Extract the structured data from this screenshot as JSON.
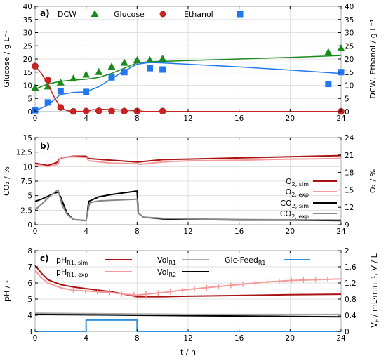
{
  "chart_data": [
    {
      "type": "line",
      "panel": "a)",
      "xlim": [
        0,
        24
      ],
      "x_ticks": [
        0,
        4,
        8,
        12,
        16,
        20,
        24
      ],
      "y_left": {
        "label": "Glucose / g L⁻¹",
        "lim": [
          0,
          40
        ],
        "ticks": [
          0,
          5,
          10,
          15,
          20,
          25,
          30,
          35,
          40
        ]
      },
      "y_right": {
        "label": "DCW,  Ethanol / g L⁻¹",
        "lim": [
          0,
          40
        ],
        "ticks": [
          0,
          5,
          10,
          15,
          20,
          25,
          30,
          35,
          40
        ]
      },
      "legend": [
        {
          "name": "DCW",
          "marker": "triangle",
          "color": "#1a8a1a"
        },
        {
          "name": "Glucose",
          "marker": "circle",
          "color": "#cc2222"
        },
        {
          "name": "Ethanol",
          "marker": "square",
          "color": "#2277ee"
        }
      ],
      "series": [
        {
          "name": "DCW",
          "kind": "points",
          "axis": "right",
          "marker": "triangle",
          "color": "#1a8a1a",
          "x": [
            0,
            1,
            2,
            3,
            4,
            5,
            6,
            7,
            8,
            9,
            10,
            23,
            24
          ],
          "y": [
            9,
            9.5,
            11,
            12.5,
            14,
            15,
            17,
            18.5,
            19.5,
            19.5,
            20,
            22.5,
            24
          ]
        },
        {
          "name": "DCW sim",
          "kind": "line",
          "axis": "right",
          "color": "#1a8a1a",
          "x": [
            0,
            1,
            2,
            3,
            4,
            5,
            6,
            7,
            8,
            9,
            10,
            12,
            16,
            20,
            24
          ],
          "y": [
            8.5,
            10.5,
            11.5,
            12,
            12.3,
            13,
            14.5,
            16.5,
            18.5,
            19,
            19.1,
            19.4,
            20,
            20.6,
            21.3
          ]
        },
        {
          "name": "Glucose",
          "kind": "points",
          "axis": "left",
          "marker": "circle",
          "color": "#cc2222",
          "x": [
            0,
            1,
            2,
            3,
            4,
            5,
            6,
            7,
            8,
            10,
            24
          ],
          "y": [
            17.3,
            12,
            1.6,
            0.1,
            0.2,
            0.3,
            0.2,
            0.2,
            0.2,
            0.2,
            0.1
          ]
        },
        {
          "name": "Glucose sim",
          "kind": "line",
          "axis": "left",
          "color": "#cc2222",
          "x": [
            0,
            0.5,
            1,
            1.5,
            2,
            2.5,
            3,
            4,
            4.5,
            5,
            6,
            7,
            8,
            8.5,
            9,
            12,
            16,
            24
          ],
          "y": [
            17.3,
            14.5,
            10.5,
            5.5,
            1.5,
            0.4,
            0.1,
            0.1,
            0.7,
            0.9,
            0.8,
            0.6,
            0.4,
            0.1,
            0.05,
            0.05,
            0.05,
            0.05
          ]
        },
        {
          "name": "Ethanol",
          "kind": "points",
          "axis": "right",
          "marker": "square",
          "color": "#2277ee",
          "x": [
            0,
            1,
            2,
            4,
            6,
            7,
            9,
            10,
            23,
            24
          ],
          "y": [
            0.5,
            3.5,
            7.8,
            7.5,
            13,
            15,
            16.5,
            16,
            10.5,
            15
          ]
        },
        {
          "name": "Ethanol sim",
          "kind": "line",
          "axis": "right",
          "color": "#2277ee",
          "x": [
            0,
            1,
            2,
            3,
            4,
            5,
            6,
            7,
            8,
            9,
            10,
            12,
            16,
            20,
            24
          ],
          "y": [
            0.3,
            2.5,
            6.5,
            7.3,
            7.5,
            9.5,
            12.5,
            15.5,
            18,
            18.7,
            18.5,
            18,
            17,
            15.8,
            14.5
          ]
        }
      ]
    },
    {
      "type": "line",
      "panel": "b)",
      "xlim": [
        0,
        24
      ],
      "x_ticks": [
        0,
        4,
        8,
        12,
        16,
        20,
        24
      ],
      "y_left": {
        "label": "CO₂ / %",
        "lim": [
          0,
          15
        ],
        "ticks": [
          0,
          2.5,
          5,
          7.5,
          10,
          12.5,
          15
        ]
      },
      "y_right": {
        "label": "O₂ / %",
        "lim": [
          9,
          24
        ],
        "ticks": [
          9,
          12,
          15,
          18,
          21,
          24
        ]
      },
      "legend_position": "right",
      "series": [
        {
          "name": "O2, sim",
          "name_main": "O",
          "name_sub": "2, sim",
          "axis": "right",
          "color": "#aa1111",
          "x": [
            0,
            1,
            1.7,
            2,
            3,
            4,
            4.2,
            6,
            8,
            8.1,
            9,
            10,
            12,
            16,
            20,
            24
          ],
          "y": [
            19.6,
            19.2,
            19.7,
            20.5,
            20.8,
            20.8,
            20.4,
            20.1,
            19.8,
            19.8,
            20.0,
            20.2,
            20.3,
            20.5,
            20.7,
            20.9
          ]
        },
        {
          "name": "O2, exp",
          "name_main": "O",
          "name_sub": "2, exp",
          "axis": "right",
          "color": "#f49a9a",
          "x": [
            0,
            1,
            1.8,
            2,
            3,
            4,
            4.2,
            6,
            8,
            8.2,
            10,
            12,
            16,
            20,
            24
          ],
          "y": [
            19.4,
            19.0,
            19.4,
            20.6,
            20.7,
            20.6,
            20.0,
            19.6,
            19.5,
            19.4,
            19.8,
            20.0,
            20.1,
            20.3,
            20.4
          ]
        },
        {
          "name": "CO2, sim",
          "name_main": "CO",
          "name_sub": "2, sim",
          "axis": "left",
          "color": "#000000",
          "x": [
            0,
            0.5,
            1,
            1.5,
            1.8,
            2,
            2.5,
            3,
            4,
            4.1,
            4.2,
            5,
            6,
            7,
            8,
            8.1,
            8.5,
            10,
            12,
            16,
            20,
            24
          ],
          "y": [
            4.0,
            4.4,
            4.9,
            5.4,
            5.6,
            4.8,
            2.0,
            0.9,
            0.7,
            2.0,
            4.0,
            4.8,
            5.2,
            5.5,
            5.8,
            2.0,
            1.3,
            1.0,
            0.9,
            0.8,
            0.8,
            0.7
          ]
        },
        {
          "name": "CO2, exp",
          "name_main": "CO",
          "name_sub": "2, exp",
          "axis": "left",
          "color": "#888888",
          "x": [
            0,
            0.5,
            1,
            1.5,
            1.8,
            2.1,
            2.5,
            3,
            4,
            4.1,
            4.3,
            5,
            6,
            7,
            8,
            8.1,
            8.5,
            10,
            12,
            16,
            20,
            24
          ],
          "y": [
            2.6,
            3.5,
            4.6,
            5.5,
            6.0,
            3.5,
            1.8,
            0.9,
            0.7,
            2.0,
            3.8,
            4.1,
            4.2,
            4.3,
            4.4,
            2.0,
            1.3,
            1.1,
            1.0,
            0.9,
            0.85,
            0.8
          ]
        }
      ]
    },
    {
      "type": "line",
      "panel": "c)",
      "xlim": [
        0,
        24
      ],
      "x_ticks": [
        0,
        4,
        8,
        12,
        16,
        20,
        24
      ],
      "xlabel": "t / h",
      "y_left": {
        "label": "pH / -",
        "lim": [
          3,
          8
        ],
        "ticks": [
          3,
          4,
          5,
          6,
          7,
          8
        ]
      },
      "y_right": {
        "label_main": "V",
        "label_sub": "F",
        "label_rest": " / mL·min⁻¹, V / L",
        "lim": [
          0,
          2
        ],
        "ticks": [
          0,
          0.4,
          0.8,
          1.2,
          1.6,
          2
        ]
      },
      "legend": [
        {
          "name": "pHR1, sim",
          "main": "pH",
          "sub": "R1, sim",
          "color": "#aa1111"
        },
        {
          "name": "pHR1, exp",
          "main": "pH",
          "sub": "R1, exp",
          "color": "#f49a9a"
        },
        {
          "name": "VolR1",
          "main": "Vol",
          "sub": "R1",
          "color": "#aaaaaa"
        },
        {
          "name": "VolR2",
          "main": "Vol",
          "sub": "R2",
          "color": "#000000"
        },
        {
          "name": "Glc-FeedR1",
          "main": "Glc-Feed",
          "sub": "R1",
          "color": "#2f8fe0"
        }
      ],
      "series": [
        {
          "name": "pHR1, sim",
          "axis": "left",
          "color": "#aa1111",
          "x": [
            0,
            0.5,
            1,
            2,
            3,
            4,
            5,
            6,
            7,
            8,
            10,
            12,
            16,
            20,
            24
          ],
          "y": [
            7.1,
            6.6,
            6.2,
            5.9,
            5.75,
            5.65,
            5.55,
            5.45,
            5.3,
            5.15,
            5.15,
            5.18,
            5.22,
            5.27,
            5.3
          ]
        },
        {
          "name": "pHR1, exp",
          "axis": "left",
          "color": "#f49a9a",
          "x": [
            0,
            0.5,
            1,
            2,
            3,
            4,
            5,
            6,
            7,
            8,
            10,
            12,
            14,
            16,
            18,
            20,
            22,
            24
          ],
          "y": [
            6.8,
            6.3,
            6.0,
            5.7,
            5.55,
            5.5,
            5.45,
            5.4,
            5.3,
            5.25,
            5.4,
            5.6,
            5.75,
            5.9,
            6.05,
            6.15,
            6.2,
            6.25
          ]
        },
        {
          "name": "VolR1",
          "axis": "right",
          "color": "#aaaaaa",
          "x": [
            0,
            4,
            8,
            12,
            16,
            20,
            24
          ],
          "y": [
            0.45,
            0.44,
            0.43,
            0.42,
            0.42,
            0.42,
            0.42
          ]
        },
        {
          "name": "VolR2",
          "axis": "right",
          "color": "#000000",
          "x": [
            0,
            4,
            8,
            12,
            16,
            20,
            24
          ],
          "y": [
            0.42,
            0.41,
            0.4,
            0.39,
            0.38,
            0.37,
            0.36
          ]
        },
        {
          "name": "Glc-FeedR1",
          "axis": "right",
          "color": "#2f8fe0",
          "x": [
            0,
            4,
            4,
            8,
            8,
            24
          ],
          "y": [
            0,
            0,
            0.28,
            0.28,
            0,
            0
          ]
        }
      ]
    }
  ]
}
